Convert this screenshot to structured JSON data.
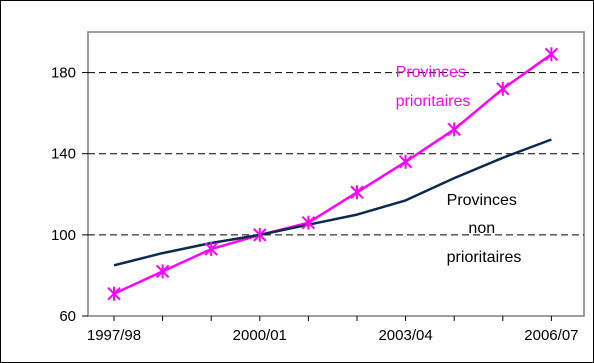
{
  "chart_data": {
    "type": "line",
    "title": "",
    "xlabel": "",
    "ylabel": "",
    "x": [
      "1997/98",
      "1998/99",
      "1999/00",
      "2000/01",
      "2001/02",
      "2002/03",
      "2003/04",
      "2004/05",
      "2005/06",
      "2006/07"
    ],
    "x_tick_labels": [
      "1997/98",
      "2000/01",
      "2003/04",
      "2006/07"
    ],
    "ylim": [
      60,
      200
    ],
    "y_ticks": [
      60,
      100,
      140,
      180
    ],
    "grid": "horizontal dashed",
    "legend": "none",
    "series": [
      {
        "name": "Provinces prioritaires",
        "color": "#ff00ff",
        "marker": "asterisk",
        "values": [
          71,
          82,
          93,
          100,
          106,
          121,
          136,
          152,
          172,
          189
        ]
      },
      {
        "name": "Provinces non prioritaires",
        "color": "#0d2a4f",
        "marker": "none",
        "values": [
          85,
          91,
          96,
          100,
          105,
          110,
          117,
          128,
          138,
          147
        ]
      }
    ],
    "annotations": [
      {
        "series": 0,
        "lines": [
          "Provinces",
          "prioritaires"
        ]
      },
      {
        "series": 1,
        "lines": [
          "Provinces",
          "non",
          "prioritaires"
        ]
      }
    ]
  }
}
